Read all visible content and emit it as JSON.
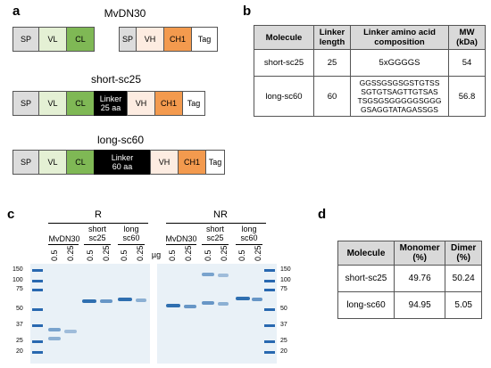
{
  "panel_a": {
    "letter": "a",
    "constructs": [
      {
        "title": "MvDN30"
      },
      {
        "title": "short-sc25"
      },
      {
        "title": "long-sc60"
      }
    ],
    "domains": {
      "sp": "SP",
      "vl": "VL",
      "cl": "CL",
      "vh": "VH",
      "ch1": "CH1",
      "tag": "Tag"
    },
    "linker25": [
      "Linker",
      "25 aa"
    ],
    "linker60": [
      "Linker",
      "60 aa"
    ]
  },
  "panel_b": {
    "letter": "b",
    "headers": [
      "Molecule",
      "Linker length",
      "Linker amino acid composition",
      "MW (kDa)"
    ],
    "rows": [
      {
        "molecule": "short-sc25",
        "length": "25",
        "composition": [
          "5xGGGGS"
        ],
        "mw": "54"
      },
      {
        "molecule": "long-sc60",
        "length": "60",
        "composition": [
          "GGSSGSGSGSTGTSS",
          "SGTGTSAGTTGTSAS",
          "TSGSGSGGGGGSGGG",
          "GSAGGTATAGASSGS"
        ],
        "mw": "56.8"
      }
    ]
  },
  "panel_c": {
    "letter": "c",
    "condition_r": "R",
    "condition_nr": "NR",
    "unit": "µg",
    "groups_r": [
      "MvDN30",
      "short sc25",
      "long sc60"
    ],
    "groups_nr": [
      "MvDN30",
      "short sc25",
      "long sc60"
    ],
    "lane_amounts": [
      "0.5",
      "0.25"
    ],
    "ladder_marks": [
      "150",
      "100",
      "75",
      "50",
      "37",
      "25",
      "20"
    ],
    "ladder_marks_right": [
      "150",
      "100",
      "75",
      "50",
      "37",
      "25",
      "20"
    ]
  },
  "panel_d": {
    "letter": "d",
    "headers": [
      "Molecule",
      "Monomer (%)",
      "Dimer (%)"
    ],
    "rows": [
      {
        "molecule": "short-sc25",
        "monomer": "49.76",
        "dimer": "50.24"
      },
      {
        "molecule": "long-sc60",
        "monomer": "94.95",
        "dimer": "5.05"
      }
    ]
  }
}
